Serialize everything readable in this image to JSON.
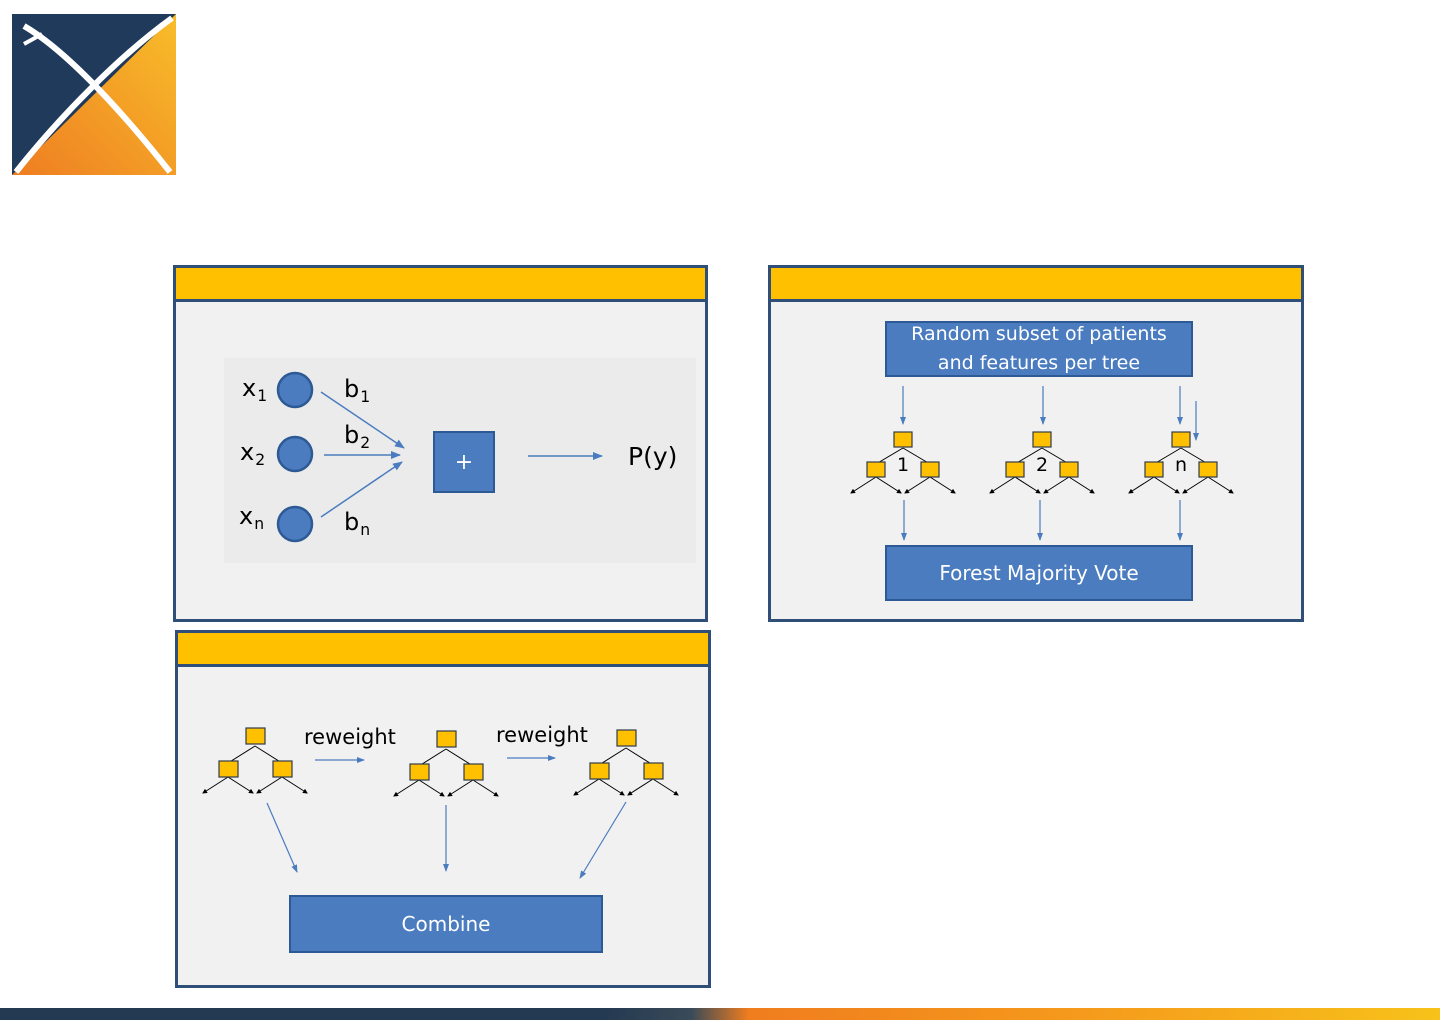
{
  "logo": {
    "colors": {
      "dark": "#1f3a5a",
      "orange": "#f08a24",
      "yellow": "#f7b82a",
      "cross": "#ffffff"
    }
  },
  "colors": {
    "accent_yellow": "#ffc000",
    "panel_border": "#2f4f78",
    "box_blue": "#4a7cbf",
    "node_yellow": "#ffc000",
    "arrow_blue": "#4a7cbf"
  },
  "panels": {
    "logistic": {
      "inputs": [
        {
          "var": "x",
          "sub": "1",
          "weight": "b",
          "weight_sub": "1"
        },
        {
          "var": "x",
          "sub": "2",
          "weight": "b",
          "weight_sub": "2"
        },
        {
          "var": "x",
          "sub": "n",
          "weight": "b",
          "weight_sub": "n"
        }
      ],
      "sum_symbol": "+",
      "output": "P(y)"
    },
    "random_forest": {
      "top_box": "Random subset of patients and features per tree",
      "tree_labels": [
        "1",
        "2",
        "n"
      ],
      "bottom_box": "Forest Majority Vote"
    },
    "boosting": {
      "reweight_1": "reweight",
      "reweight_2": "reweight",
      "combine": "Combine"
    }
  }
}
